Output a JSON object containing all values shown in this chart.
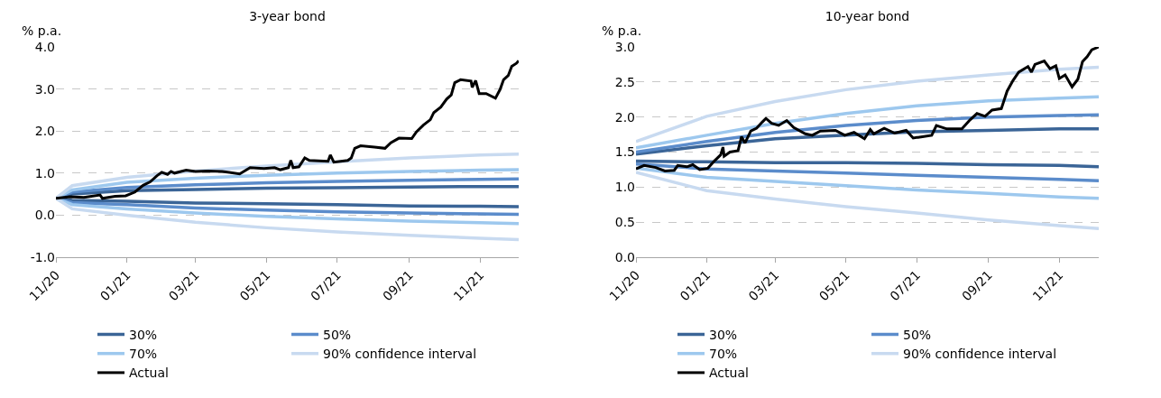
{
  "chart_data": [
    {
      "type": "line",
      "title": "3-year bond",
      "ylabel": "% p.a.",
      "x": [
        "2020-11-01",
        "2020-11-15",
        "2021-01-01",
        "2021-03-01",
        "2021-05-01",
        "2021-07-01",
        "2021-09-01",
        "2021-11-01",
        "2021-12-04"
      ],
      "series": [
        {
          "name": "30%",
          "color": "#3b6597",
          "values": [
            0.4,
            0.5,
            0.58,
            0.61,
            0.64,
            0.65,
            0.67,
            0.68,
            0.68
          ]
        },
        {
          "color": "#3b6597",
          "values": [
            0.4,
            0.35,
            0.33,
            0.29,
            0.27,
            0.25,
            0.22,
            0.21,
            0.2
          ]
        },
        {
          "name": "50%",
          "color": "#5b8ccb",
          "values": [
            0.4,
            0.55,
            0.66,
            0.72,
            0.77,
            0.8,
            0.83,
            0.85,
            0.86
          ]
        },
        {
          "color": "#5b8ccb",
          "values": [
            0.4,
            0.3,
            0.25,
            0.17,
            0.12,
            0.08,
            0.05,
            0.03,
            0.02
          ]
        },
        {
          "name": "70%",
          "color": "#9dc8ee",
          "values": [
            0.4,
            0.6,
            0.78,
            0.88,
            0.95,
            1.0,
            1.04,
            1.07,
            1.08
          ]
        },
        {
          "color": "#9dc8ee",
          "values": [
            0.4,
            0.25,
            0.15,
            0.05,
            -0.03,
            -0.09,
            -0.14,
            -0.18,
            -0.2
          ]
        },
        {
          "name": "90% confidence interval",
          "color": "#c8daf0",
          "values": [
            0.4,
            0.7,
            0.9,
            1.05,
            1.17,
            1.27,
            1.36,
            1.43,
            1.45
          ]
        },
        {
          "color": "#c8daf0",
          "values": [
            0.4,
            0.15,
            0.0,
            -0.17,
            -0.3,
            -0.4,
            -0.48,
            -0.55,
            -0.58
          ]
        },
        {
          "name": "Actual",
          "color": "#000000",
          "x": [
            "2020-11-01",
            "2020-11-13",
            "2020-11-25",
            "2020-12-09",
            "2020-12-11",
            "2020-12-22",
            "2020-12-31",
            "2021-01-08",
            "2021-01-15",
            "2021-01-21",
            "2021-01-27",
            "2021-01-31",
            "2021-02-05",
            "2021-02-08",
            "2021-02-11",
            "2021-02-21",
            "2021-03-01",
            "2021-03-12",
            "2021-03-24",
            "2021-04-08",
            "2021-04-17",
            "2021-04-29",
            "2021-05-08",
            "2021-05-13",
            "2021-05-20",
            "2021-05-22",
            "2021-05-24",
            "2021-05-29",
            "2021-06-03",
            "2021-06-07",
            "2021-06-23",
            "2021-06-25",
            "2021-06-28",
            "2021-07-10",
            "2021-07-13",
            "2021-07-16",
            "2021-07-21",
            "2021-08-02",
            "2021-08-11",
            "2021-08-16",
            "2021-08-23",
            "2021-09-03",
            "2021-09-07",
            "2021-09-13",
            "2021-09-19",
            "2021-09-22",
            "2021-09-28",
            "2021-10-03",
            "2021-10-07",
            "2021-10-10",
            "2021-10-15",
            "2021-10-24",
            "2021-10-25",
            "2021-10-28",
            "2021-10-31",
            "2021-11-06",
            "2021-11-14",
            "2021-11-18",
            "2021-11-21",
            "2021-11-25",
            "2021-11-28",
            "2021-12-02",
            "2021-12-04"
          ],
          "values": [
            0.4,
            0.44,
            0.42,
            0.48,
            0.4,
            0.45,
            0.46,
            0.55,
            0.71,
            0.79,
            0.94,
            1.02,
            0.97,
            1.04,
            1.0,
            1.07,
            1.04,
            1.05,
            1.04,
            0.98,
            1.13,
            1.11,
            1.13,
            1.08,
            1.13,
            1.3,
            1.13,
            1.15,
            1.36,
            1.3,
            1.28,
            1.43,
            1.26,
            1.3,
            1.36,
            1.59,
            1.65,
            1.62,
            1.59,
            1.72,
            1.83,
            1.82,
            1.98,
            2.14,
            2.27,
            2.44,
            2.57,
            2.76,
            2.86,
            3.15,
            3.22,
            3.19,
            3.04,
            3.2,
            2.89,
            2.89,
            2.78,
            2.99,
            3.22,
            3.32,
            3.54,
            3.61,
            3.67
          ]
        }
      ],
      "xlim": [
        "2020-11-01",
        "2021-12-04"
      ],
      "xticks": [
        {
          "value": "2020-11-01",
          "label": "11/20"
        },
        {
          "value": "2021-01-01",
          "label": "01/21"
        },
        {
          "value": "2021-03-01",
          "label": "03/21"
        },
        {
          "value": "2021-05-01",
          "label": "05/21"
        },
        {
          "value": "2021-07-01",
          "label": "07/21"
        },
        {
          "value": "2021-09-01",
          "label": "09/21"
        },
        {
          "value": "2021-11-01",
          "label": "11/21"
        }
      ],
      "ylim": [
        -1,
        4
      ],
      "yticks": [
        {
          "value": -1,
          "label": "-1.0"
        },
        {
          "value": 0,
          "label": "0.0"
        },
        {
          "value": 1,
          "label": "1.0"
        },
        {
          "value": 2,
          "label": "2.0"
        },
        {
          "value": 3,
          "label": "3.0"
        },
        {
          "value": 4,
          "label": "4.0"
        }
      ],
      "grid": "y",
      "legend": "bottom",
      "marker": "none",
      "line_style": "solid"
    },
    {
      "type": "line",
      "title": "10-year bond",
      "ylabel": "% p.a.",
      "x": [
        "2020-11-01",
        "2021-01-01",
        "2021-03-01",
        "2021-05-01",
        "2021-07-01",
        "2021-09-01",
        "2021-11-01",
        "2021-12-05"
      ],
      "series": [
        {
          "name": "30%",
          "color": "#3b6597",
          "values": [
            1.47,
            1.59,
            1.69,
            1.74,
            1.79,
            1.81,
            1.83,
            1.83
          ]
        },
        {
          "color": "#3b6597",
          "values": [
            1.37,
            1.36,
            1.35,
            1.35,
            1.34,
            1.32,
            1.31,
            1.29
          ]
        },
        {
          "name": "50%",
          "color": "#5b8ccb",
          "values": [
            1.5,
            1.65,
            1.78,
            1.88,
            1.95,
            2.0,
            2.02,
            2.03
          ]
        },
        {
          "color": "#5b8ccb",
          "values": [
            1.33,
            1.26,
            1.23,
            1.2,
            1.17,
            1.14,
            1.11,
            1.09
          ]
        },
        {
          "name": "70%",
          "color": "#9dc8ee",
          "values": [
            1.56,
            1.74,
            1.91,
            2.05,
            2.16,
            2.23,
            2.27,
            2.29
          ]
        },
        {
          "color": "#9dc8ee",
          "values": [
            1.27,
            1.14,
            1.08,
            1.02,
            0.96,
            0.91,
            0.86,
            0.84
          ]
        },
        {
          "name": "90% confidence interval",
          "color": "#c8daf0",
          "values": [
            1.65,
            2.01,
            2.22,
            2.39,
            2.51,
            2.6,
            2.68,
            2.71
          ]
        },
        {
          "color": "#c8daf0",
          "values": [
            1.21,
            0.95,
            0.83,
            0.72,
            0.63,
            0.53,
            0.45,
            0.41
          ]
        },
        {
          "name": "Actual",
          "color": "#000000",
          "x": [
            "2020-11-01",
            "2020-11-08",
            "2020-11-18",
            "2020-11-26",
            "2020-12-04",
            "2020-12-07",
            "2020-12-15",
            "2020-12-20",
            "2020-12-26",
            "2021-01-02",
            "2021-01-08",
            "2021-01-13",
            "2021-01-15",
            "2021-01-16",
            "2021-01-21",
            "2021-01-28",
            "2021-01-31",
            "2021-02-03",
            "2021-02-08",
            "2021-02-13",
            "2021-02-18",
            "2021-02-21",
            "2021-02-26",
            "2021-03-04",
            "2021-03-11",
            "2021-03-17",
            "2021-03-27",
            "2021-04-02",
            "2021-04-09",
            "2021-04-22",
            "2021-04-30",
            "2021-05-08",
            "2021-05-17",
            "2021-05-22",
            "2021-05-25",
            "2021-06-03",
            "2021-06-12",
            "2021-06-22",
            "2021-06-28",
            "2021-07-06",
            "2021-07-14",
            "2021-07-18",
            "2021-07-27",
            "2021-08-09",
            "2021-08-16",
            "2021-08-22",
            "2021-08-29",
            "2021-09-04",
            "2021-09-12",
            "2021-09-17",
            "2021-09-22",
            "2021-09-27",
            "2021-10-05",
            "2021-10-08",
            "2021-10-11",
            "2021-10-19",
            "2021-10-24",
            "2021-10-29",
            "2021-11-01",
            "2021-11-06",
            "2021-11-12",
            "2021-11-17",
            "2021-11-21",
            "2021-11-25",
            "2021-11-29",
            "2021-12-05"
          ],
          "values": [
            1.26,
            1.31,
            1.28,
            1.23,
            1.24,
            1.31,
            1.29,
            1.32,
            1.25,
            1.27,
            1.38,
            1.46,
            1.57,
            1.44,
            1.5,
            1.52,
            1.72,
            1.63,
            1.8,
            1.84,
            1.93,
            1.98,
            1.91,
            1.88,
            1.95,
            1.85,
            1.76,
            1.74,
            1.8,
            1.81,
            1.74,
            1.78,
            1.69,
            1.82,
            1.76,
            1.84,
            1.77,
            1.81,
            1.7,
            1.72,
            1.74,
            1.88,
            1.83,
            1.83,
            1.96,
            2.05,
            2.01,
            2.1,
            2.12,
            2.37,
            2.52,
            2.64,
            2.72,
            2.64,
            2.75,
            2.8,
            2.69,
            2.73,
            2.55,
            2.6,
            2.43,
            2.54,
            2.79,
            2.86,
            2.96,
            3.0
          ]
        }
      ],
      "xlim": [
        "2020-11-01",
        "2021-12-05"
      ],
      "xticks": [
        {
          "value": "2020-11-01",
          "label": "11/20"
        },
        {
          "value": "2021-01-01",
          "label": "01/21"
        },
        {
          "value": "2021-03-01",
          "label": "03/21"
        },
        {
          "value": "2021-05-01",
          "label": "05/21"
        },
        {
          "value": "2021-07-01",
          "label": "07/21"
        },
        {
          "value": "2021-09-01",
          "label": "09/21"
        },
        {
          "value": "2021-11-01",
          "label": "11/21"
        }
      ],
      "ylim": [
        0,
        3
      ],
      "yticks": [
        {
          "value": 0,
          "label": "0.0"
        },
        {
          "value": 0.5,
          "label": "0.5"
        },
        {
          "value": 1,
          "label": "1.0"
        },
        {
          "value": 1.5,
          "label": "1.5"
        },
        {
          "value": 2,
          "label": "2.0"
        },
        {
          "value": 2.5,
          "label": "2.5"
        },
        {
          "value": 3,
          "label": "3.0"
        }
      ],
      "grid": "y",
      "legend": "bottom",
      "marker": "none",
      "line_style": "solid"
    }
  ]
}
